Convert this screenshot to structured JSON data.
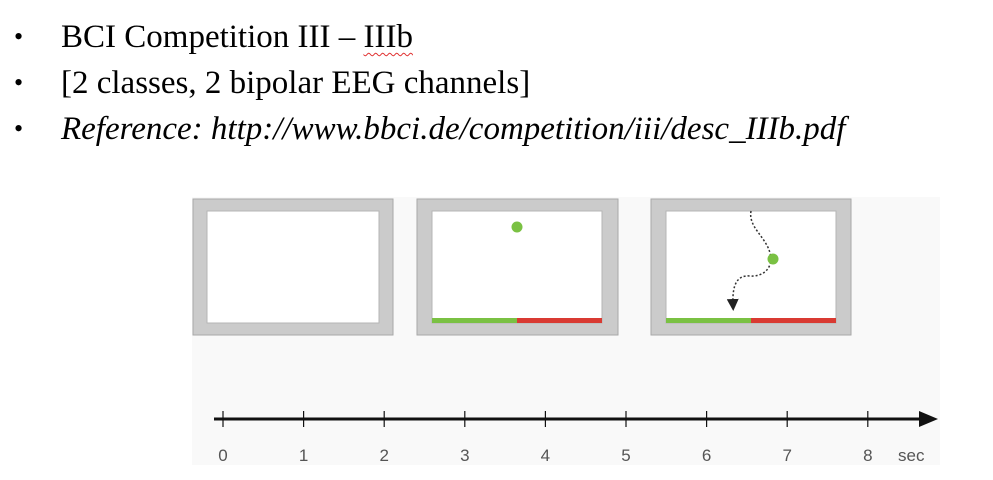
{
  "bullets": [
    {
      "text_main": "BCI Competition III – ",
      "text_marked": "IIIb",
      "italic": false
    },
    {
      "text_main": "[2 classes, 2 bipolar EEG channels]",
      "text_marked": "",
      "italic": false
    },
    {
      "text_main": "Reference: http://www.bbci.de/competition/iii/desc_IIIb.pdf",
      "text_marked": "",
      "italic": true
    }
  ],
  "bullet_glyph": "•",
  "timeline": {
    "ticks": [
      "0",
      "1",
      "2",
      "3",
      "4",
      "5",
      "6",
      "7",
      "8"
    ],
    "unit": "sec"
  },
  "colors": {
    "frame": "#cbcbcb",
    "frame_border": "#a8a8a8",
    "ball": "#7ac143",
    "bar_left": "#7ac143",
    "bar_right": "#d93a32",
    "axis": "#111111"
  },
  "screens": [
    {
      "content": "blank"
    },
    {
      "content": "ball-and-bar"
    },
    {
      "content": "ball-trajectory-and-bar"
    }
  ]
}
